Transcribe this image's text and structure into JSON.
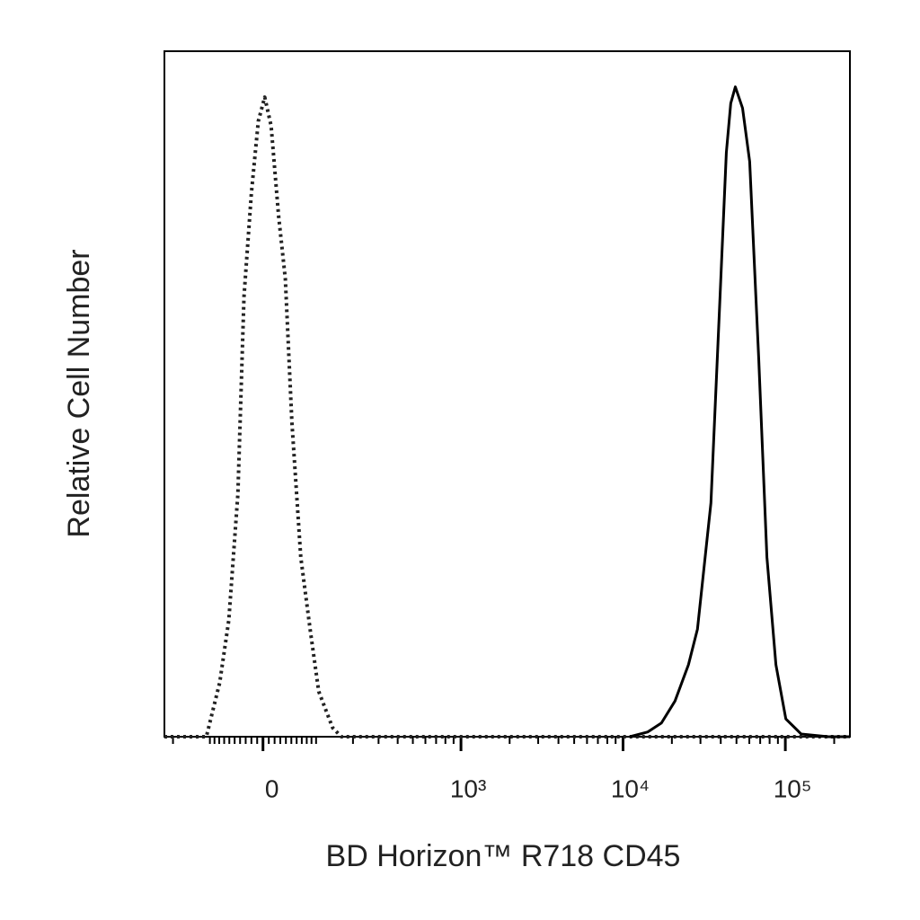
{
  "chart_data": {
    "type": "line",
    "x_label": "BD Horizon™ R718 CD45",
    "y_label": "Relative Cell Number",
    "xscale": "biexponential",
    "xlim": [
      -230,
      250000
    ],
    "ylim": [
      0,
      100
    ],
    "xticks": [
      0,
      {
        "value": 1000,
        "label": "10³"
      },
      {
        "value": 10000,
        "label": "10⁴"
      },
      {
        "value": 100000,
        "label": "10⁵"
      }
    ],
    "xminor_ticks": [
      -200,
      -100,
      -90,
      -80,
      -70,
      -60,
      -50,
      -40,
      -30,
      -20,
      -10,
      10,
      20,
      30,
      40,
      50,
      60,
      70,
      80,
      90,
      100,
      200,
      300,
      400,
      500,
      600,
      700,
      800,
      900,
      2000,
      3000,
      4000,
      5000,
      6000,
      7000,
      8000,
      9000,
      20000,
      30000,
      40000,
      50000,
      60000,
      70000,
      80000,
      90000,
      200000
    ],
    "series": [
      {
        "color": "#222222",
        "style": "dotted",
        "x": [
          -230,
          -108,
          -79,
          -61,
          -44,
          -33,
          -20,
          -8,
          3,
          14,
          27,
          39,
          51,
          68,
          87,
          106,
          140,
          164,
          250000
        ],
        "values": [
          0,
          0,
          7.9,
          17,
          35.4,
          64.2,
          79.3,
          89.8,
          93.3,
          89.1,
          76,
          66.8,
          45.9,
          26.2,
          15.7,
          6.6,
          1.3,
          0,
          0
        ]
      },
      {
        "color": "#000000",
        "style": "solid",
        "x": [
          11020,
          14220,
          17240,
          20900,
          25300,
          28750,
          34800,
          39600,
          43300,
          46100,
          49200,
          54500,
          60300,
          68600,
          77000,
          87500,
          100700,
          125100,
          183800,
          250000
        ],
        "values": [
          0,
          0.7,
          2,
          5.2,
          10.5,
          15.7,
          34.1,
          64.2,
          85.2,
          92.4,
          94.8,
          91.7,
          83.9,
          55,
          26.2,
          10.5,
          2.6,
          0.4,
          0,
          0
        ]
      }
    ]
  }
}
